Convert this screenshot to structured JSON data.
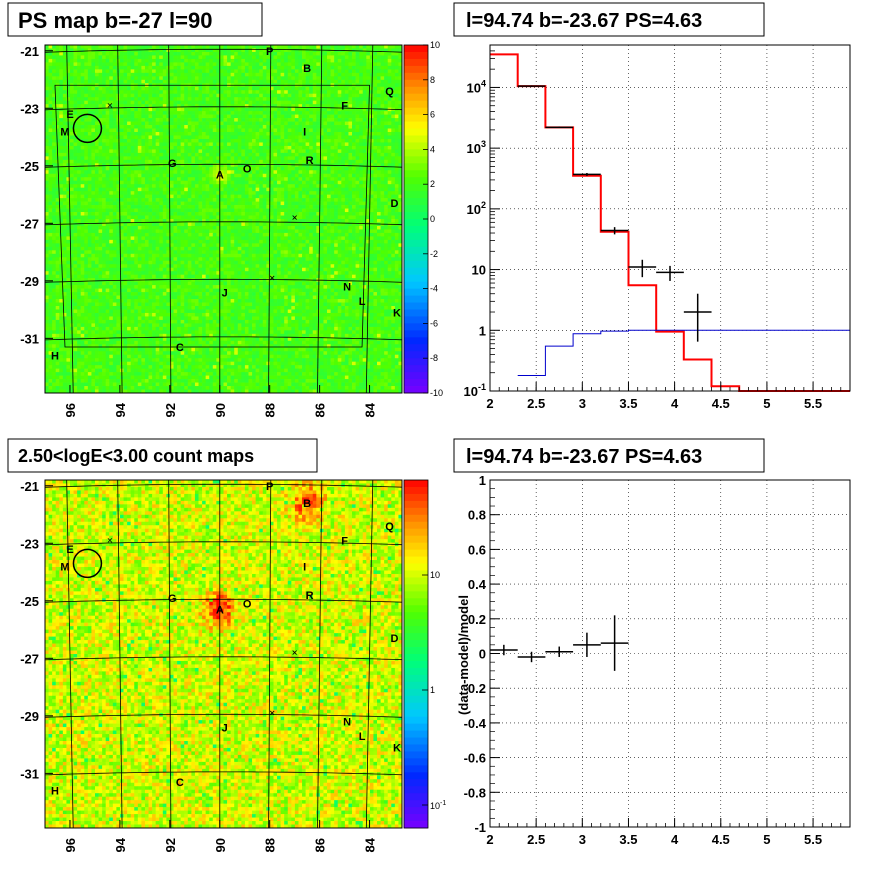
{
  "chart_data": [
    {
      "type": "heatmap",
      "title": "PS map b=-27 l=90",
      "x_ticks": [
        "96",
        "94",
        "92",
        "90",
        "88",
        "86",
        "84"
      ],
      "y_ticks": [
        "-21",
        "-23",
        "-25",
        "-27",
        "-29",
        "-31"
      ],
      "colorbar_ticks": [
        "10",
        "8",
        "6",
        "4",
        "2",
        "0",
        "-2",
        "-4",
        "-6",
        "-8",
        "-10"
      ],
      "colorbar_range": [
        -10,
        10
      ],
      "sources": [
        {
          "label": "P",
          "l": 88.0,
          "b": -21.0
        },
        {
          "label": "B",
          "l": 86.5,
          "b": -21.6
        },
        {
          "label": "Q",
          "l": 83.2,
          "b": -22.4
        },
        {
          "label": "F",
          "l": 85.0,
          "b": -22.9
        },
        {
          "label": "E",
          "l": 96.0,
          "b": -23.2
        },
        {
          "label": "I",
          "l": 86.6,
          "b": -23.8
        },
        {
          "label": "M",
          "l": 96.2,
          "b": -23.8
        },
        {
          "label": "G",
          "l": 91.9,
          "b": -24.9
        },
        {
          "label": "R",
          "l": 86.4,
          "b": -24.8
        },
        {
          "label": "O",
          "l": 88.9,
          "b": -25.1
        },
        {
          "label": "A",
          "l": 90.0,
          "b": -25.3
        },
        {
          "label": "D",
          "l": 83.0,
          "b": -26.3
        },
        {
          "label": "N",
          "l": 84.9,
          "b": -29.2
        },
        {
          "label": "J",
          "l": 89.8,
          "b": -29.4
        },
        {
          "label": "L",
          "l": 84.3,
          "b": -29.7
        },
        {
          "label": "K",
          "l": 82.9,
          "b": -30.1
        },
        {
          "label": "C",
          "l": 91.6,
          "b": -31.3
        },
        {
          "label": "H",
          "l": 96.6,
          "b": -31.6
        }
      ]
    },
    {
      "type": "line",
      "title": "l=94.74 b=-23.67 PS=4.63",
      "x_ticks": [
        "2",
        "2.5",
        "3",
        "3.5",
        "4",
        "4.5",
        "5",
        "5.5"
      ],
      "y_ticks": [
        "10^-1",
        "1",
        "10",
        "10^2",
        "10^3",
        "10^4"
      ],
      "xlim": [
        2.0,
        5.9
      ],
      "ylim": [
        0.1,
        50000
      ],
      "yscale": "log",
      "series": [
        {
          "type": "step",
          "color": "#ff0000",
          "edges": [
            2.0,
            2.3,
            2.6,
            2.9,
            3.2,
            3.5,
            3.8,
            4.1,
            4.4,
            4.7,
            5.0,
            5.9
          ],
          "values": [
            35000,
            10500,
            2200,
            350,
            42,
            5.5,
            0.95,
            0.33,
            0.12,
            0.1,
            0.1
          ]
        },
        {
          "type": "step",
          "color": "#0000cc",
          "edges": [
            2.3,
            2.6,
            2.9,
            3.2,
            3.5,
            5.9
          ],
          "values": [
            0.18,
            0.55,
            0.88,
            0.97,
            1.0
          ]
        },
        {
          "type": "errorbar",
          "color": "#000000",
          "x": [
            2.45,
            2.75,
            3.05,
            3.35,
            3.65,
            3.95,
            4.25
          ],
          "xerr": 0.15,
          "y": [
            10500,
            2200,
            370,
            44,
            11,
            9,
            2
          ],
          "ylo": [
            10200,
            2150,
            350,
            38,
            7.5,
            6.5,
            0.65
          ],
          "yhi": [
            10800,
            2260,
            390,
            50,
            14.5,
            11.5,
            4
          ]
        }
      ]
    },
    {
      "type": "heatmap",
      "title": "2.50<logE<3.00 count maps",
      "x_ticks": [
        "96",
        "94",
        "92",
        "90",
        "88",
        "86",
        "84"
      ],
      "y_ticks": [
        "-21",
        "-23",
        "-25",
        "-27",
        "-29",
        "-31"
      ],
      "colorbar_ticks": [
        "10",
        "1",
        "10^-1"
      ],
      "colorbar_scale": "log",
      "sources_ref": 0
    },
    {
      "type": "line",
      "title": "l=94.74 b=-23.67 PS=4.63",
      "ylabel": "(data-model)/model",
      "x_ticks": [
        "2",
        "2.5",
        "3",
        "3.5",
        "4",
        "4.5",
        "5",
        "5.5"
      ],
      "y_ticks": [
        "1",
        "0.8",
        "0.6",
        "0.4",
        "0.2",
        "0",
        "-0.2",
        "-0.4",
        "-0.6",
        "-0.8",
        "-1"
      ],
      "xlim": [
        2.0,
        5.9
      ],
      "ylim": [
        -1,
        1
      ],
      "series": [
        {
          "type": "errorbar",
          "color": "#000000",
          "x": [
            2.15,
            2.45,
            2.75,
            3.05,
            3.35
          ],
          "xerr": 0.15,
          "y": [
            0.02,
            -0.02,
            0.01,
            0.05,
            0.06
          ],
          "err": [
            0.03,
            0.03,
            0.03,
            0.07,
            0.16
          ]
        }
      ]
    }
  ]
}
